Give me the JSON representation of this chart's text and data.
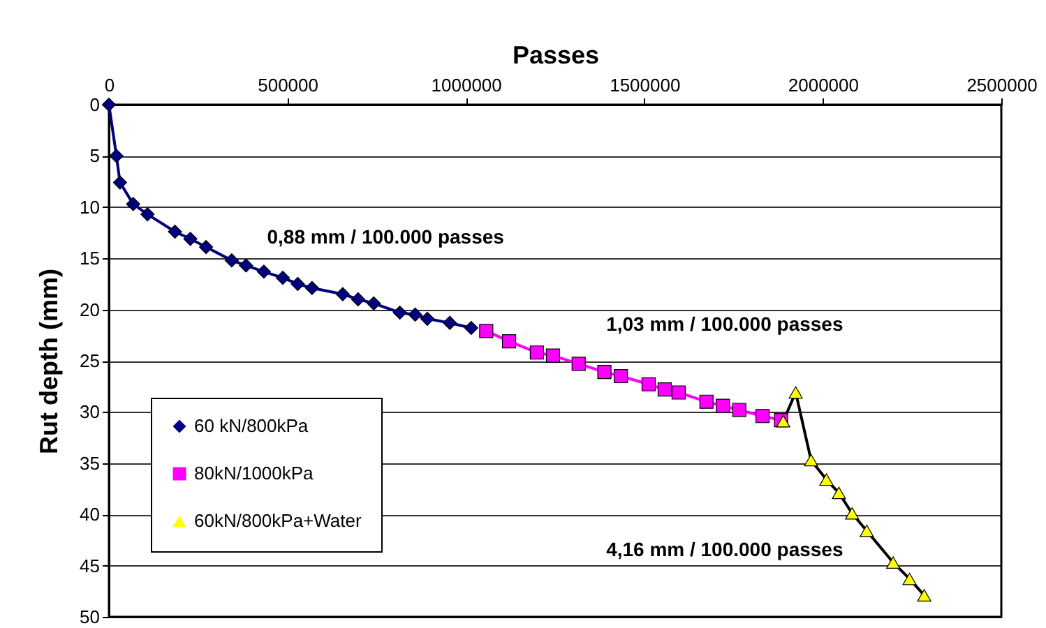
{
  "chart_data": {
    "type": "line",
    "xlabel": "Passes",
    "ylabel": "Rut depth (mm)",
    "xlim": [
      0,
      2500000
    ],
    "xticks": [
      0,
      500000,
      1000000,
      1500000,
      2000000,
      2500000
    ],
    "ylim": [
      50,
      0
    ],
    "yticks": [
      0,
      5,
      10,
      15,
      20,
      25,
      30,
      35,
      40,
      45,
      50
    ],
    "grid": "y",
    "legend": "bottom left",
    "series": [
      {
        "name": "60 kN/800kPa",
        "color": "#000080",
        "marker": "diamond",
        "x": [
          0,
          21000,
          31000,
          68000,
          108000,
          185000,
          228000,
          272000,
          344000,
          384000,
          434000,
          487000,
          529000,
          569000,
          655000,
          698000,
          742000,
          815000,
          858000,
          892000,
          955000,
          1015000
        ],
        "values": [
          0,
          5.0,
          7.6,
          9.7,
          10.7,
          12.4,
          13.1,
          13.9,
          15.2,
          15.7,
          16.3,
          16.9,
          17.5,
          17.9,
          18.5,
          19.0,
          19.4,
          20.3,
          20.5,
          20.9,
          21.3,
          21.8
        ]
      },
      {
        "name": "80kN/1000kPa",
        "color": "#ff00ff",
        "marker": "square",
        "x": [
          1057000,
          1121000,
          1199000,
          1244000,
          1316000,
          1388000,
          1434000,
          1512000,
          1557000,
          1596000,
          1674000,
          1720000,
          1766000,
          1831000,
          1883000
        ],
        "values": [
          22.1,
          23.1,
          24.2,
          24.5,
          25.3,
          26.1,
          26.5,
          27.3,
          27.8,
          28.1,
          29.0,
          29.4,
          29.8,
          30.4,
          30.8
        ]
      },
      {
        "name": "60kN/800kPa+Water",
        "color": "#ffff00",
        "marker": "triangle",
        "x": [
          1889000,
          1924000,
          1967000,
          2010000,
          2045000,
          2082000,
          2123000,
          2197000,
          2243000,
          2284000
        ],
        "values": [
          30.9,
          28.1,
          34.7,
          36.6,
          37.9,
          39.9,
          41.6,
          44.7,
          46.3,
          47.9
        ]
      }
    ],
    "annotations": [
      "0,88 mm / 100.000 passes",
      "1,03 mm / 100.000 passes",
      "4,16 mm / 100.000 passes"
    ]
  }
}
